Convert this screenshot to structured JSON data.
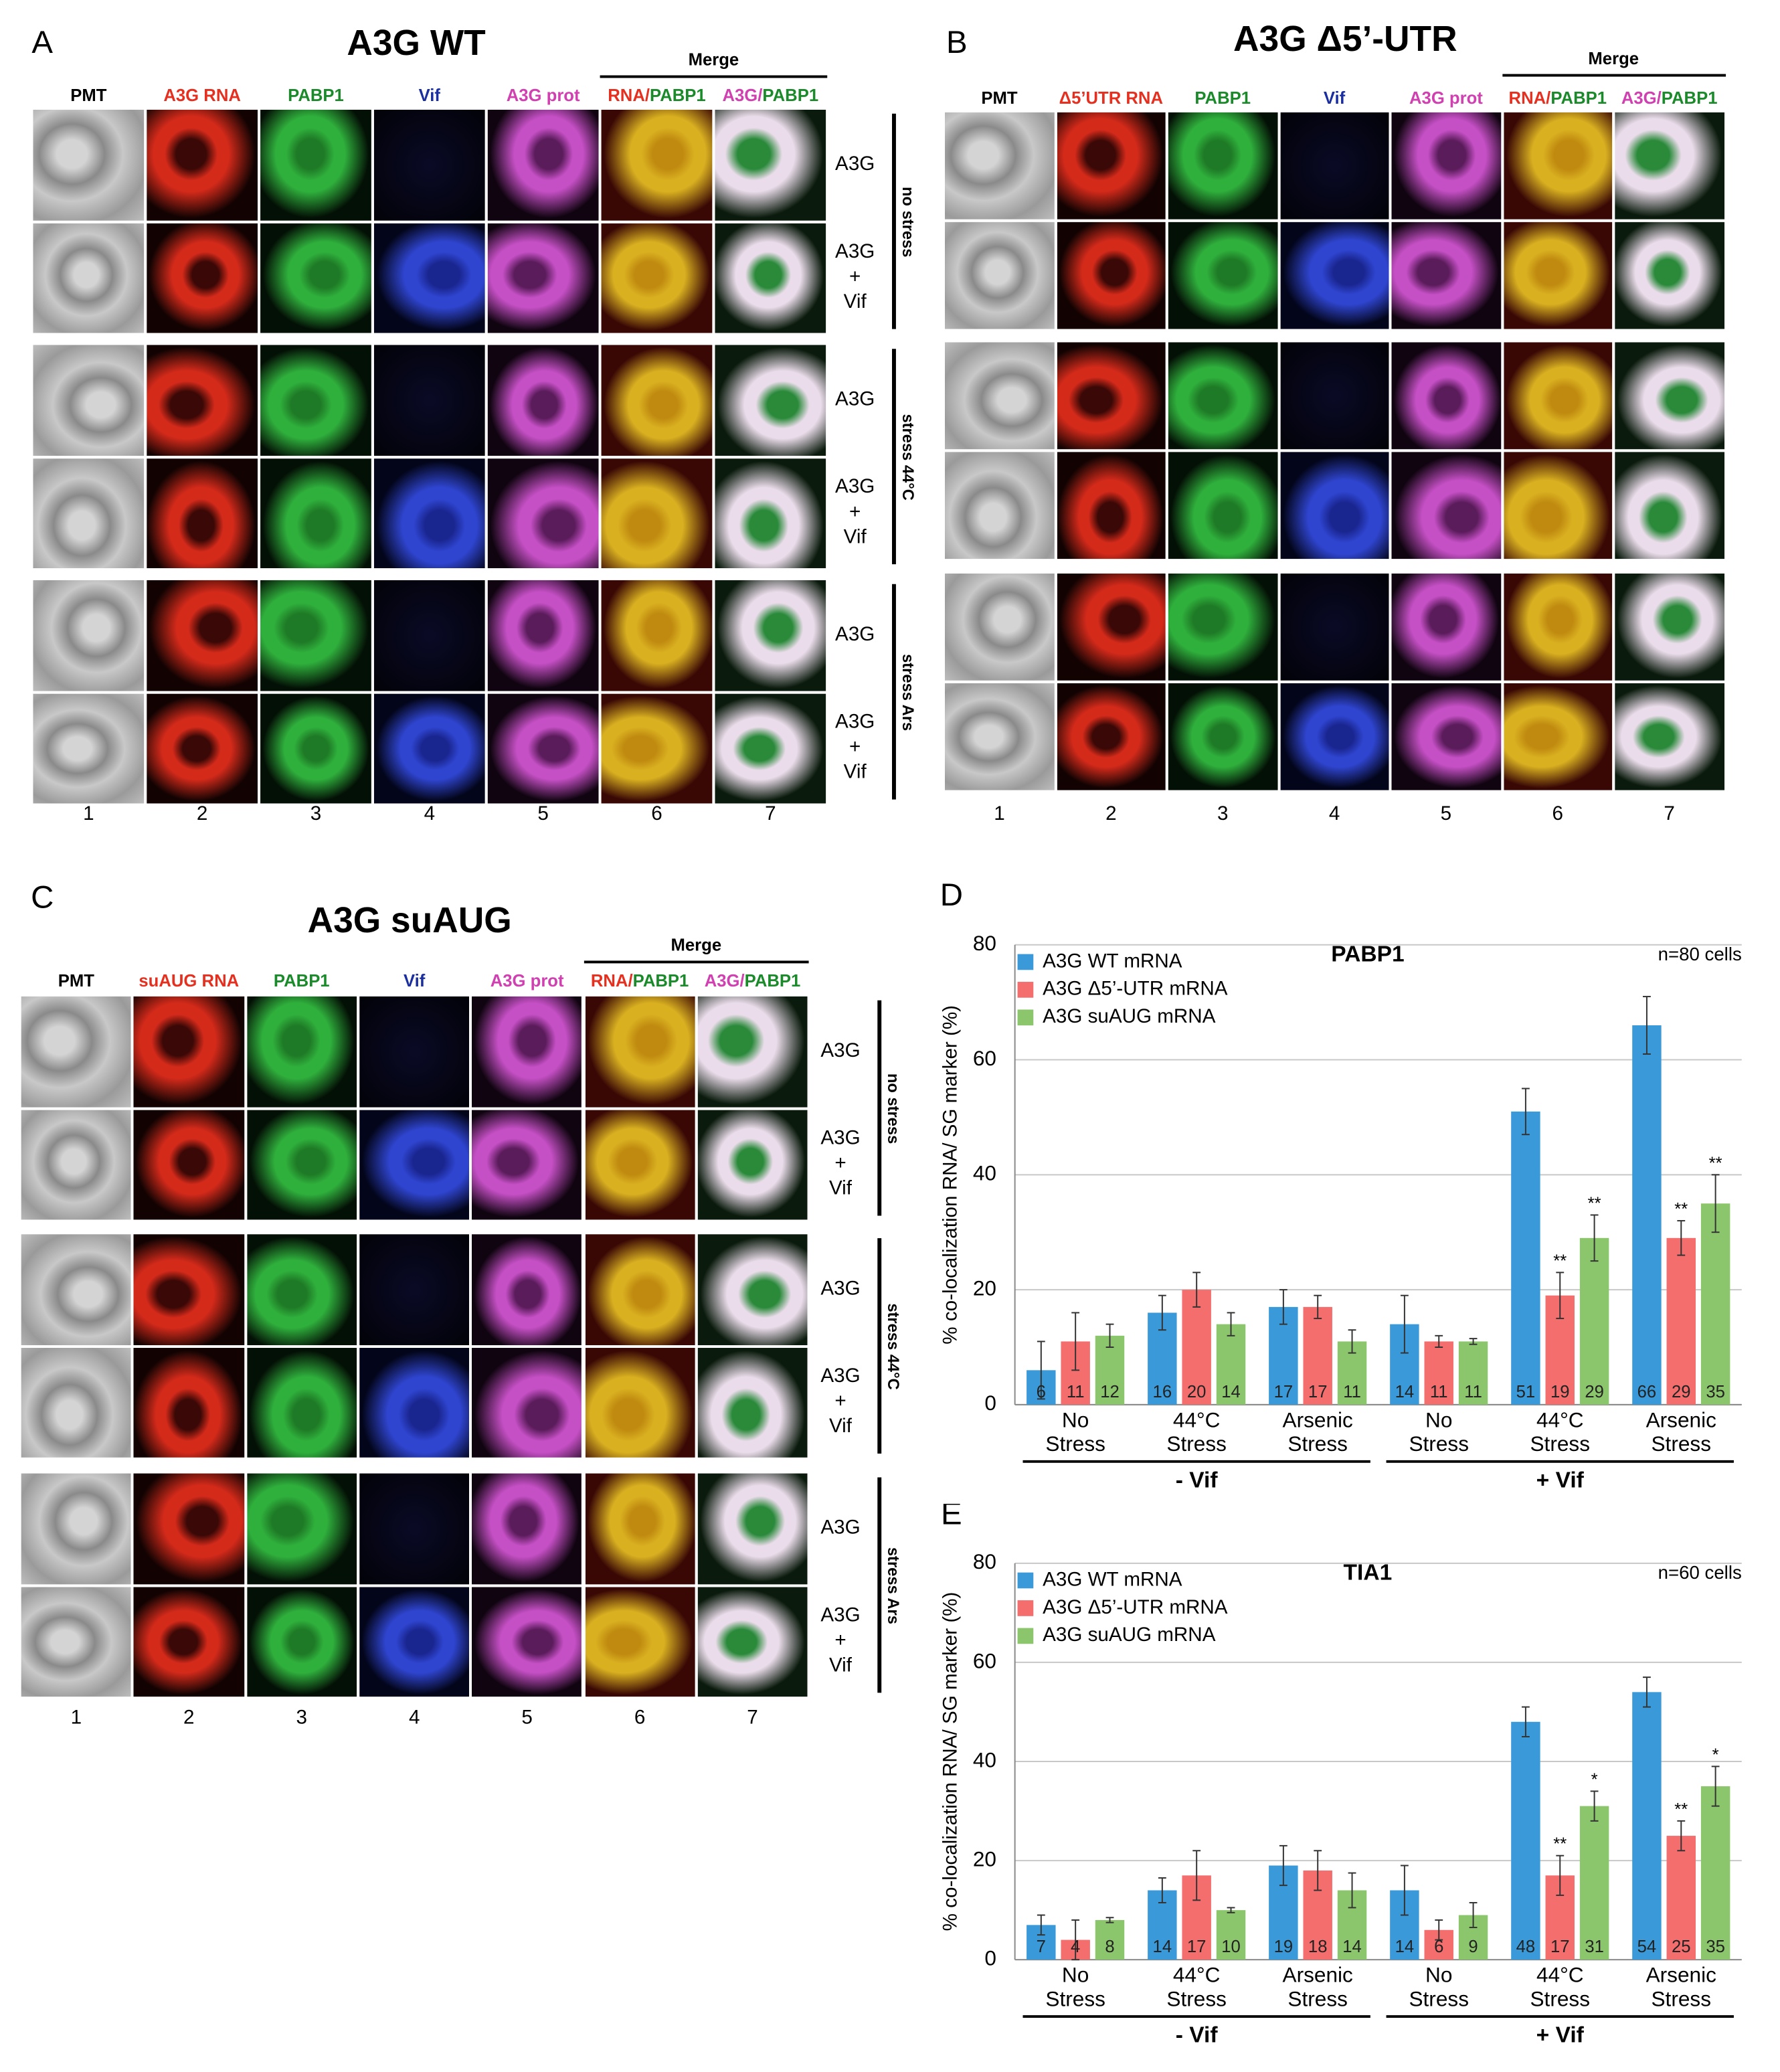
{
  "panels": [
    {
      "letter": "A",
      "title": "A3G WT",
      "merge": "Merge",
      "columns": [
        "PMT",
        "A3G RNA",
        "PABP1",
        "Vif",
        "A3G prot"
      ],
      "merge_columns": [
        [
          "RNA/",
          "PABP1"
        ],
        [
          "A3G/",
          "PABP1"
        ]
      ],
      "row_labels": [
        "A3G",
        "A3G + Vif"
      ],
      "conditions": [
        "no stress",
        "stress 44°C",
        "stress Ars"
      ],
      "lanes": [
        1,
        2,
        3,
        4,
        5,
        6,
        7
      ]
    },
    {
      "letter": "B",
      "title": "A3G Δ5’-UTR",
      "merge": "Merge",
      "columns": [
        "PMT",
        "Δ5’UTR RNA",
        "PABP1",
        "Vif",
        "A3G prot"
      ],
      "merge_columns": [
        [
          "RNA/",
          "PABP1"
        ],
        [
          "A3G/",
          "PABP1"
        ]
      ],
      "lanes": [
        1,
        2,
        3,
        4,
        5,
        6,
        7
      ]
    },
    {
      "letter": "C",
      "title": "A3G suAUG",
      "merge": "Merge",
      "columns": [
        "PMT",
        "suAUG RNA",
        "PABP1",
        "Vif",
        "A3G prot"
      ],
      "merge_columns": [
        [
          "RNA/",
          "PABP1"
        ],
        [
          "A3G/",
          "PABP1"
        ]
      ],
      "row_labels": [
        "A3G",
        "A3G + Vif"
      ],
      "conditions": [
        "no stress",
        "stress 44°C",
        "stress Ars"
      ],
      "lanes": [
        1,
        2,
        3,
        4,
        5,
        6,
        7
      ]
    }
  ],
  "chart_data": [
    {
      "type": "bar",
      "panel_label": "D",
      "title": "PABP1",
      "note": "n=80 cells",
      "y_label": "% co-localization RNA/ SG marker (%)",
      "categories": [
        "No Stress",
        "44°C Stress",
        "Arsenic Stress",
        "No Stress",
        "44°C Stress",
        "Arsenic Stress"
      ],
      "groups": [
        "- Vif",
        "+ Vif"
      ],
      "ylim": [
        0,
        80
      ],
      "yticks": [
        0,
        20,
        40,
        60,
        80
      ],
      "grid": true,
      "legend": "top-left",
      "series": [
        {
          "name": "A3G WT mRNA",
          "color": "#3a9ad9",
          "values": [
            6,
            16,
            17,
            14,
            51,
            66
          ],
          "errors": [
            5,
            3,
            3,
            5,
            4,
            5
          ],
          "marks": [
            null,
            null,
            null,
            null,
            null,
            null
          ]
        },
        {
          "name": "A3G Δ5’-UTR mRNA",
          "color": "#f46e6e",
          "values": [
            11,
            20,
            17,
            11,
            19,
            29
          ],
          "errors": [
            5,
            3,
            2,
            1,
            4,
            3
          ],
          "marks": [
            null,
            null,
            null,
            null,
            "**",
            "**"
          ]
        },
        {
          "name": "A3G suAUG mRNA",
          "color": "#8cc66c",
          "values": [
            12,
            14,
            11,
            11,
            29,
            35
          ],
          "errors": [
            2,
            2,
            2,
            0.5,
            4,
            5
          ],
          "marks": [
            null,
            null,
            null,
            null,
            "**",
            "**"
          ]
        }
      ]
    },
    {
      "type": "bar",
      "panel_label": "E",
      "title": "TIA1",
      "note": "n=60 cells",
      "y_label": "% co-localization RNA/ SG marker (%)",
      "categories": [
        "No Stress",
        "44°C Stress",
        "Arsenic Stress",
        "No Stress",
        "44°C Stress",
        "Arsenic Stress"
      ],
      "groups": [
        "- Vif",
        "+ Vif"
      ],
      "ylim": [
        0,
        80
      ],
      "yticks": [
        0,
        20,
        40,
        60,
        80
      ],
      "grid": true,
      "legend": "top-left",
      "series": [
        {
          "name": "A3G WT mRNA",
          "color": "#3a9ad9",
          "values": [
            7,
            14,
            19,
            14,
            48,
            54
          ],
          "errors": [
            2,
            2.5,
            4,
            5,
            3,
            3
          ],
          "marks": [
            null,
            null,
            null,
            null,
            null,
            null
          ]
        },
        {
          "name": "A3G Δ5’-UTR mRNA",
          "color": "#f46e6e",
          "values": [
            4,
            17,
            18,
            6,
            17,
            25
          ],
          "errors": [
            4,
            5,
            4,
            2,
            4,
            3
          ],
          "marks": [
            null,
            null,
            null,
            null,
            "**",
            "**"
          ]
        },
        {
          "name": "A3G suAUG mRNA",
          "color": "#8cc66c",
          "values": [
            8,
            10,
            14,
            9,
            31,
            35
          ],
          "errors": [
            0.5,
            0.5,
            3.5,
            2.5,
            3,
            4
          ],
          "marks": [
            null,
            null,
            null,
            null,
            "*",
            "*"
          ]
        }
      ]
    }
  ]
}
